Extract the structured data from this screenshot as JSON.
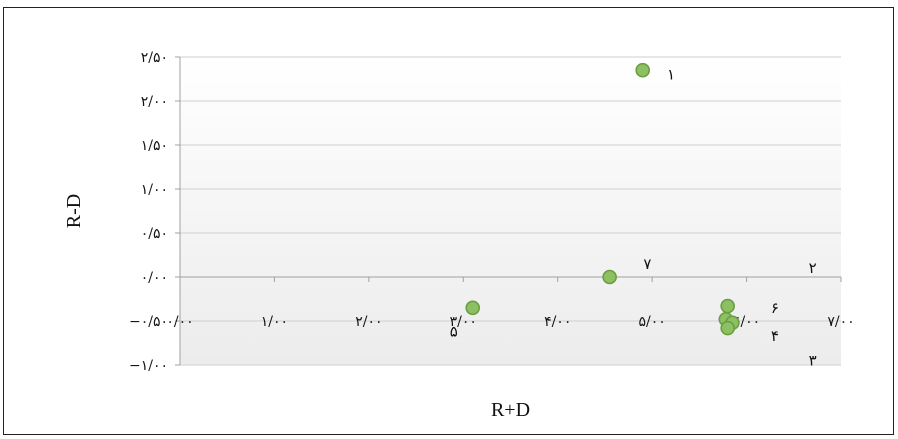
{
  "chart_data": {
    "type": "scatter",
    "xlabel": "R+D",
    "ylabel": "R-D",
    "xlim": [
      0,
      7
    ],
    "ylim": [
      -1,
      2.5
    ],
    "x_ticks": [
      0,
      1,
      2,
      3,
      4,
      5,
      6,
      7
    ],
    "y_ticks": [
      -1,
      -0.5,
      0,
      0.5,
      1,
      1.5,
      2,
      2.5
    ],
    "x_tick_labels": [
      "۰/۰۰",
      "۱/۰۰",
      "۲/۰۰",
      "۳/۰۰",
      "۴/۰۰",
      "۵/۰۰",
      "۶/۰۰",
      "۷/۰۰"
    ],
    "y_tick_labels": [
      "−۱/۰۰",
      "−۰/۵۰",
      "۰/۰۰",
      "۰/۵۰",
      "۱/۰۰",
      "۱/۵۰",
      "۲/۰۰",
      "۲/۵۰"
    ],
    "grid": true,
    "marker_color": "#8dc063",
    "marker_edge_color": "#6a9e40",
    "points": [
      {
        "x": 4.9,
        "y": 2.35
      },
      {
        "x": 4.55,
        "y": 0.0
      },
      {
        "x": 3.1,
        "y": -0.35
      },
      {
        "x": 5.8,
        "y": -0.33
      },
      {
        "x": 5.78,
        "y": -0.48
      },
      {
        "x": 5.85,
        "y": -0.52
      },
      {
        "x": 5.8,
        "y": -0.58
      }
    ],
    "annotations": [
      {
        "text": "۱",
        "x": 5.2,
        "y": 2.3
      },
      {
        "text": "۲",
        "x": 6.7,
        "y": 0.1
      },
      {
        "text": "۳",
        "x": 6.7,
        "y": -0.95
      },
      {
        "text": "۴",
        "x": 6.3,
        "y": -0.67
      },
      {
        "text": "۵",
        "x": 2.9,
        "y": -0.62
      },
      {
        "text": "۶",
        "x": 6.3,
        "y": -0.35
      },
      {
        "text": "۷",
        "x": 4.95,
        "y": 0.15
      }
    ]
  }
}
